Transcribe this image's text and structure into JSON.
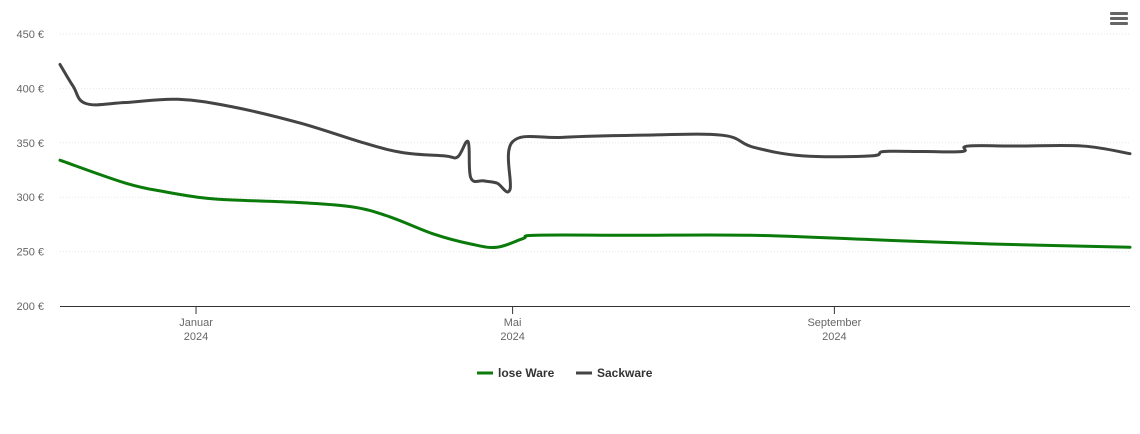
{
  "chart_data": {
    "type": "line",
    "currency_suffix": " €",
    "ylim": [
      200,
      450
    ],
    "yticks": [
      200,
      250,
      300,
      350,
      400,
      450
    ],
    "xlim": [
      "2023-11-10",
      "2024-12-23"
    ],
    "xticks": [
      {
        "date": "2024-01-01",
        "label_month": "Januar",
        "label_year": "2024"
      },
      {
        "date": "2024-05-01",
        "label_month": "Mai",
        "label_year": "2024"
      },
      {
        "date": "2024-09-01",
        "label_month": "September",
        "label_year": "2024"
      }
    ],
    "grid": true,
    "legend_position": "bottom-center",
    "series": [
      {
        "name": "lose Ware",
        "color": "#0a7a0a",
        "points": [
          [
            "2023-11-10",
            334
          ],
          [
            "2023-12-05",
            313
          ],
          [
            "2023-12-20",
            305
          ],
          [
            "2024-01-05",
            299
          ],
          [
            "2024-01-20",
            297
          ],
          [
            "2024-02-10",
            295
          ],
          [
            "2024-03-01",
            291
          ],
          [
            "2024-03-15",
            282
          ],
          [
            "2024-04-01",
            266
          ],
          [
            "2024-04-15",
            257
          ],
          [
            "2024-04-25",
            254
          ],
          [
            "2024-05-05",
            262
          ],
          [
            "2024-05-10",
            265
          ],
          [
            "2024-06-15",
            265
          ],
          [
            "2024-07-31",
            265
          ],
          [
            "2024-09-15",
            261
          ],
          [
            "2024-10-31",
            257
          ],
          [
            "2024-12-23",
            254
          ]
        ]
      },
      {
        "name": "Sackware",
        "color": "#444444",
        "points": [
          [
            "2023-11-10",
            422
          ],
          [
            "2023-11-15",
            402
          ],
          [
            "2023-11-20",
            386
          ],
          [
            "2023-12-05",
            387
          ],
          [
            "2023-12-25",
            390
          ],
          [
            "2024-01-15",
            383
          ],
          [
            "2024-02-10",
            368
          ],
          [
            "2024-03-05",
            350
          ],
          [
            "2024-03-20",
            341
          ],
          [
            "2024-04-05",
            338
          ],
          [
            "2024-04-10",
            337
          ],
          [
            "2024-04-14",
            351
          ],
          [
            "2024-04-15",
            318
          ],
          [
            "2024-04-20",
            315
          ],
          [
            "2024-04-25",
            313
          ],
          [
            "2024-04-30",
            307
          ],
          [
            "2024-05-01",
            351
          ],
          [
            "2024-05-20",
            355
          ],
          [
            "2024-06-20",
            357
          ],
          [
            "2024-07-20",
            357
          ],
          [
            "2024-08-01",
            346
          ],
          [
            "2024-08-20",
            338
          ],
          [
            "2024-09-15",
            338
          ],
          [
            "2024-09-20",
            342
          ],
          [
            "2024-10-05",
            342
          ],
          [
            "2024-10-20",
            342
          ],
          [
            "2024-10-22",
            347
          ],
          [
            "2024-11-10",
            347
          ],
          [
            "2024-12-05",
            347
          ],
          [
            "2024-12-23",
            340
          ]
        ]
      }
    ]
  }
}
